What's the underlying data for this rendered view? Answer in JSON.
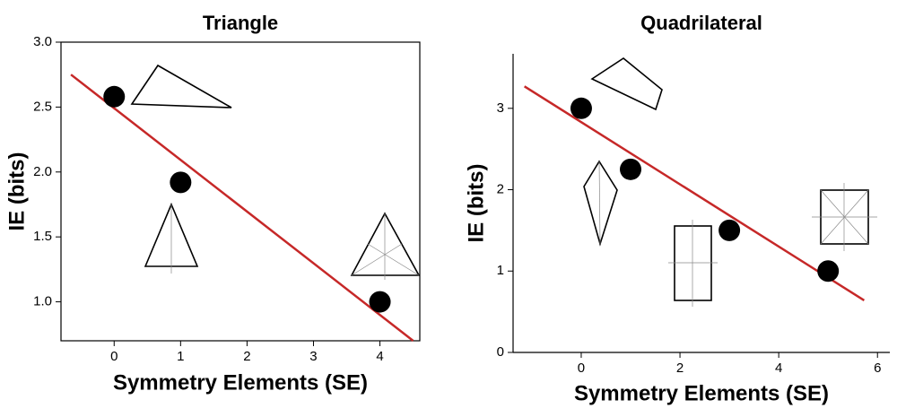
{
  "chart_data": [
    {
      "type": "scatter",
      "title": "Triangle",
      "x_label": "Symmetry Elements (SE)",
      "y_label": "IE (bits)",
      "x": [
        0,
        1,
        4
      ],
      "values": [
        2.58,
        1.92,
        1.0
      ],
      "color": "#000000",
      "frame": true,
      "fit_line": {
        "x": [
          -0.65,
          4.5
        ],
        "values": [
          2.75,
          0.7
        ],
        "color": "#c62828"
      },
      "xlim": [
        -0.8,
        4.6
      ],
      "ylim": [
        0.7,
        3.0
      ],
      "xticks": [
        0,
        1,
        2,
        3,
        4
      ],
      "yticks": [
        {
          "value": 1.0,
          "label": "1.0"
        },
        1.5,
        {
          "value": 2.0,
          "label": "2.0"
        },
        2.5,
        {
          "value": 3.0,
          "label": "3.0"
        }
      ]
    },
    {
      "type": "scatter",
      "title": "Quadrilateral",
      "x_label": "Symmetry Elements (SE)",
      "y_label": "IE (bits)",
      "x": [
        0,
        1,
        3,
        5
      ],
      "values": [
        3.0,
        2.25,
        1.5,
        1.0
      ],
      "color": "#000000",
      "frame": false,
      "fit_line": {
        "x": [
          -1.15,
          5.73
        ],
        "values": [
          3.27,
          0.64
        ],
        "color": "#c62828"
      },
      "xlim": [
        -1.38,
        6.25
      ],
      "ylim": [
        0,
        3.67
      ],
      "xticks": [
        0,
        2,
        4,
        6
      ],
      "yticks": [
        0,
        1,
        2,
        3
      ]
    }
  ]
}
